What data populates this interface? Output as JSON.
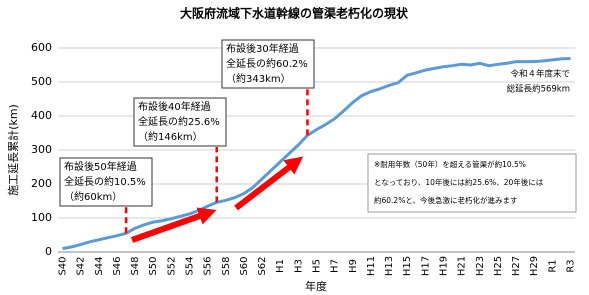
{
  "chart_data": {
    "type": "line",
    "title": "大阪府流域下水道幹線の管渠老朽化の現状",
    "x_label": "年度",
    "y_label": "施工延長累計(km)",
    "categories": [
      "S40",
      null,
      "S42",
      null,
      "S44",
      null,
      "S46",
      null,
      "S48",
      null,
      "S50",
      null,
      "S52",
      null,
      "S54",
      null,
      "S56",
      null,
      "S58",
      null,
      "S60",
      null,
      "S62",
      null,
      "H1",
      null,
      "H3",
      null,
      "H5",
      null,
      "H7",
      null,
      "H9",
      null,
      "H11",
      null,
      "H13",
      null,
      "H15",
      null,
      "H17",
      null,
      "H19",
      null,
      "H21",
      null,
      "H23",
      null,
      "H25",
      null,
      "H27",
      null,
      "H29",
      null,
      "R1",
      null,
      "R3"
    ],
    "values": [
      10,
      15,
      22,
      30,
      36,
      42,
      48,
      55,
      70,
      80,
      88,
      92,
      98,
      105,
      112,
      122,
      135,
      146,
      152,
      160,
      172,
      190,
      215,
      240,
      265,
      290,
      315,
      343,
      360,
      375,
      392,
      415,
      440,
      460,
      472,
      480,
      490,
      498,
      520,
      527,
      535,
      540,
      545,
      548,
      552,
      550,
      555,
      548,
      552,
      555,
      560,
      560,
      560,
      562,
      565,
      568,
      569
    ],
    "color": "#5b9bd5",
    "ylim": [
      0,
      600
    ],
    "yticks": [
      0,
      100,
      200,
      300,
      400,
      500,
      600
    ],
    "grid": true,
    "annotations": [
      {
        "lines": [
          "布設後50年経過",
          "全延長の約10.5%",
          "（約60km）"
        ]
      },
      {
        "lines": [
          "布設後40年経過",
          "全延長の約25.6%",
          "（約146km）"
        ]
      },
      {
        "lines": [
          "布設後30年経過",
          "全延長の約60.2%",
          "（約343km）"
        ]
      }
    ],
    "end_note": [
      "令和４年度末で",
      "総延長約569km"
    ],
    "footnote": [
      "※耐用年数（50年）を超える管渠が約10.5%",
      "となっており、10年後には約25.6%、20年後には",
      "約60.2%と、今後急激に老朽化が進みます"
    ]
  }
}
